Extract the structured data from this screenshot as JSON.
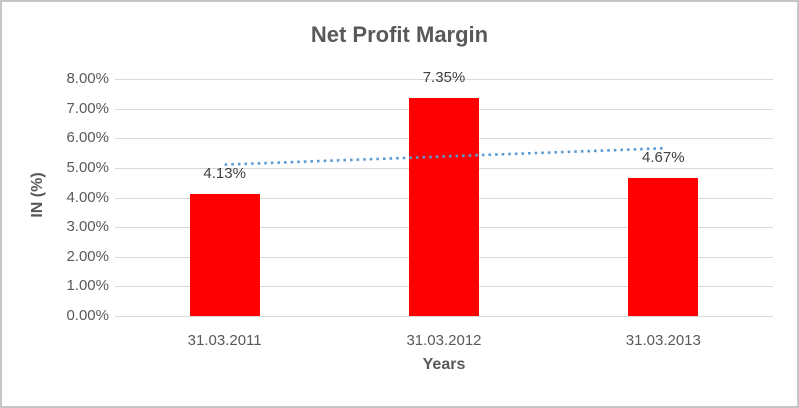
{
  "chart_data": {
    "type": "bar",
    "title": "Net Profit Margin",
    "xlabel": "Years",
    "ylabel": "IN (%)",
    "categories": [
      "31.03.2011",
      "31.03.2012",
      "31.03.2013"
    ],
    "values": [
      4.13,
      7.35,
      4.67
    ],
    "data_labels": [
      "4.13%",
      "7.35%",
      "4.67%"
    ],
    "y_ticks": [
      "8.00%",
      "7.00%",
      "6.00%",
      "5.00%",
      "4.00%",
      "3.00%",
      "2.00%",
      "1.00%",
      "0.00%"
    ],
    "ylim": [
      0,
      8
    ],
    "grid": true,
    "legend": "none",
    "trendline": {
      "style": "dotted",
      "start_value": 5.11,
      "end_value": 5.66
    },
    "colors": {
      "bar": "#ff0000",
      "trendline": "#5b9bd5",
      "gridline": "#d9d9d9",
      "axis_text": "#595959",
      "data_label_text": "#404040",
      "title_text": "#595959",
      "frame_border": "#c6c6c6"
    }
  }
}
